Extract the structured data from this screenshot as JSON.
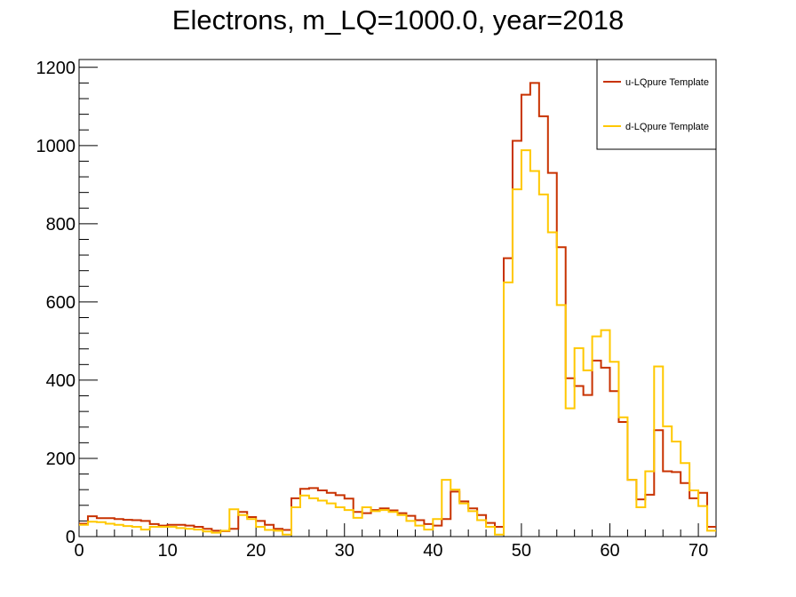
{
  "chart_data": {
    "type": "histogram-step",
    "title": "Electrons, m_LQ=1000.0, year=2018",
    "xlabel": "",
    "ylabel": "",
    "xlim": [
      0,
      72
    ],
    "ylim": [
      0,
      1220
    ],
    "bin_width": 1,
    "x_ticks": [
      0,
      10,
      20,
      30,
      40,
      50,
      60,
      70
    ],
    "y_ticks": [
      0,
      200,
      400,
      600,
      800,
      1000,
      1200
    ],
    "grid": false,
    "legend_position": "top-right",
    "series": [
      {
        "name": "u-LQpure Template",
        "color": "#c83200",
        "values": [
          33,
          52,
          47,
          47,
          45,
          43,
          42,
          40,
          32,
          28,
          30,
          30,
          28,
          25,
          20,
          15,
          14,
          20,
          63,
          50,
          40,
          30,
          20,
          17,
          98,
          122,
          124,
          118,
          112,
          106,
          97,
          63,
          60,
          68,
          72,
          67,
          60,
          53,
          42,
          32,
          28,
          45,
          115,
          90,
          72,
          55,
          35,
          25,
          712,
          1012,
          1130,
          1160,
          1075,
          930,
          740,
          405,
          385,
          362,
          450,
          432,
          372,
          293,
          145,
          95,
          107,
          272,
          167,
          165,
          137,
          98,
          112,
          25
        ]
      },
      {
        "name": "d-LQpure Template",
        "color": "#ffc800",
        "values": [
          30,
          38,
          37,
          33,
          30,
          27,
          25,
          18,
          25,
          25,
          25,
          22,
          20,
          18,
          13,
          10,
          15,
          70,
          55,
          45,
          25,
          17,
          15,
          5,
          75,
          105,
          98,
          92,
          85,
          75,
          68,
          48,
          75,
          65,
          68,
          63,
          55,
          40,
          28,
          18,
          45,
          145,
          120,
          85,
          65,
          42,
          25,
          5,
          650,
          888,
          988,
          935,
          875,
          778,
          592,
          328,
          482,
          425,
          512,
          528,
          447,
          305,
          145,
          75,
          167,
          435,
          282,
          243,
          188,
          118,
          78,
          15
        ]
      }
    ]
  }
}
